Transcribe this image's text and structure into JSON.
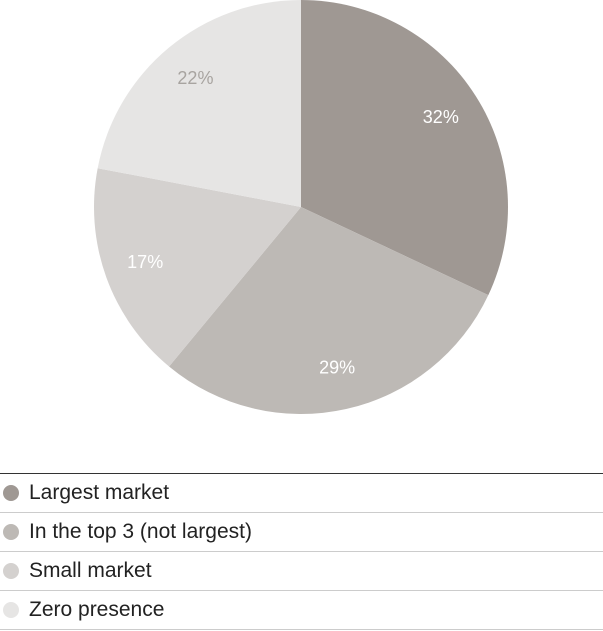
{
  "chart_data": {
    "type": "pie",
    "categories": [
      "Largest market",
      "In the top 3 (not largest)",
      "Small market",
      "Zero presence"
    ],
    "values": [
      32,
      29,
      17,
      22
    ],
    "value_labels": [
      "32%",
      "29%",
      "17%",
      "22%"
    ],
    "colors": [
      "#9f9893",
      "#bdb9b5",
      "#d4d1cf",
      "#e6e5e4"
    ]
  }
}
